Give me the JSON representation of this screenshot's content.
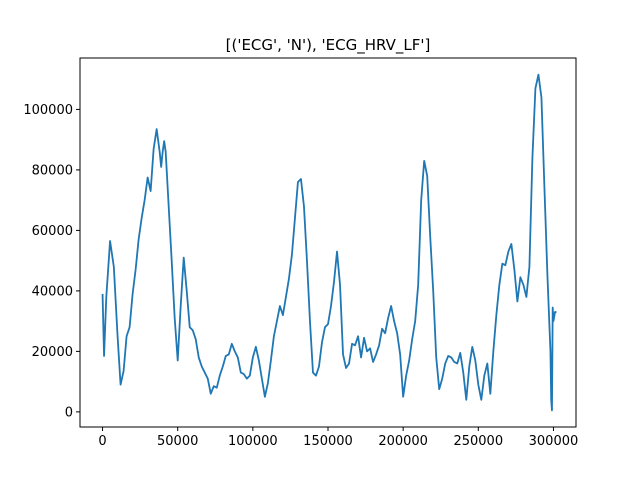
{
  "chart_data": {
    "type": "line",
    "title": "[('ECG', 'N'), 'ECG_HRV_LF']",
    "xlabel": "",
    "ylabel": "",
    "xlim": [
      -15000,
      315000
    ],
    "ylim": [
      -5000,
      117000
    ],
    "grid": false,
    "x_ticks": [
      0,
      50000,
      100000,
      150000,
      200000,
      250000,
      300000
    ],
    "x_tick_labels": [
      "0",
      "50000",
      "100000",
      "150000",
      "200000",
      "250000",
      "300000"
    ],
    "y_ticks": [
      0,
      20000,
      40000,
      60000,
      80000,
      100000
    ],
    "y_tick_labels": [
      "0",
      "20000",
      "40000",
      "60000",
      "80000",
      "100000"
    ],
    "series": [
      {
        "color": "#1f77b4",
        "x": [
          0,
          1000,
          2500,
          5000,
          7500,
          10000,
          12000,
          14000,
          16000,
          18000,
          20000,
          22000,
          24000,
          26000,
          28000,
          30000,
          32000,
          34000,
          36000,
          38000,
          39000,
          40000,
          41000,
          42000,
          44000,
          46000,
          48000,
          50000,
          52000,
          54000,
          56000,
          58000,
          60000,
          62000,
          64000,
          66000,
          68000,
          70000,
          72000,
          74000,
          76000,
          78000,
          80000,
          82000,
          84000,
          86000,
          88000,
          90000,
          92000,
          94000,
          96000,
          98000,
          100000,
          102000,
          104000,
          106000,
          108000,
          110000,
          112000,
          114000,
          116000,
          118000,
          120000,
          122000,
          124000,
          126000,
          128000,
          130000,
          132000,
          134000,
          136000,
          138000,
          140000,
          142000,
          144000,
          146000,
          148000,
          150000,
          152000,
          154000,
          156000,
          158000,
          160000,
          162000,
          164000,
          166000,
          168000,
          170000,
          172000,
          174000,
          176000,
          178000,
          180000,
          182000,
          184000,
          186000,
          188000,
          190000,
          192000,
          194000,
          196000,
          198000,
          200000,
          202000,
          204000,
          206000,
          208000,
          210000,
          212000,
          214000,
          216000,
          218000,
          220000,
          222000,
          224000,
          226000,
          228000,
          230000,
          232000,
          234000,
          236000,
          238000,
          240000,
          242000,
          244000,
          246000,
          248000,
          250000,
          252000,
          254000,
          256000,
          258000,
          260000,
          262000,
          264000,
          266000,
          268000,
          270000,
          272000,
          274000,
          276000,
          278000,
          280000,
          282000,
          284000,
          286000,
          288000,
          290000,
          292000,
          294000,
          296000,
          298000,
          298500,
          299000,
          299500,
          300000,
          301000,
          302000
        ],
        "y": [
          39000,
          18500,
          38000,
          56500,
          48000,
          25000,
          9000,
          13500,
          25000,
          28000,
          39000,
          47000,
          57000,
          64000,
          70000,
          77500,
          73000,
          87000,
          93500,
          86000,
          81000,
          86000,
          89500,
          86000,
          68000,
          50000,
          31000,
          17000,
          35000,
          51000,
          40000,
          28000,
          27000,
          24000,
          18000,
          15000,
          13000,
          11000,
          6000,
          8500,
          8000,
          12000,
          15000,
          18500,
          19000,
          22500,
          20000,
          18000,
          13000,
          12500,
          11000,
          12000,
          18000,
          21500,
          17000,
          11000,
          5000,
          9500,
          17000,
          25000,
          30000,
          35000,
          32000,
          38000,
          44000,
          52000,
          64000,
          76000,
          77000,
          68000,
          50000,
          30000,
          13000,
          12000,
          15000,
          23000,
          28000,
          29000,
          35000,
          43000,
          53000,
          42000,
          19000,
          14500,
          16000,
          22500,
          22000,
          25000,
          18000,
          24500,
          20000,
          21000,
          16500,
          19000,
          22000,
          27500,
          26000,
          31000,
          35000,
          30000,
          26000,
          19000,
          5000,
          12000,
          17000,
          24000,
          30000,
          42000,
          70000,
          83000,
          78000,
          58000,
          40000,
          18000,
          7500,
          11000,
          16000,
          18500,
          18000,
          16500,
          16000,
          19500,
          13000,
          4000,
          15000,
          21500,
          17000,
          9000,
          4000,
          12000,
          16000,
          6000,
          20000,
          32000,
          42000,
          49000,
          48500,
          53000,
          55500,
          47000,
          36500,
          44500,
          42000,
          38000,
          48000,
          84000,
          107000,
          111500,
          104000,
          74000,
          45000,
          20000,
          4000,
          500,
          34500,
          30000,
          33000,
          33000
        ]
      }
    ]
  }
}
